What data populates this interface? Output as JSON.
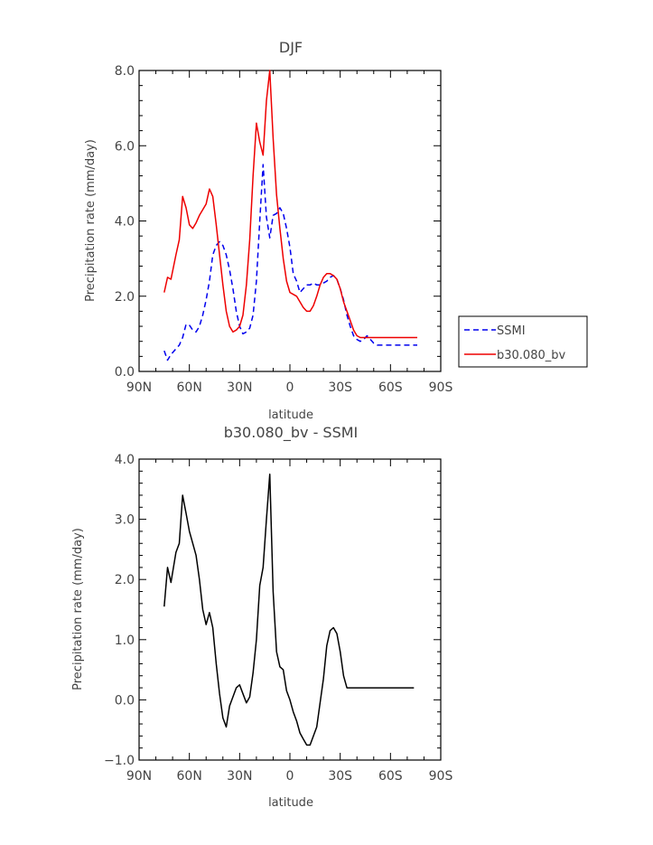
{
  "chart_data": [
    {
      "type": "line",
      "title": "DJF",
      "xlabel": "latitude",
      "ylabel": "Precipitation rate (mm/day)",
      "xlim": [
        -90,
        90
      ],
      "ylim": [
        0,
        8
      ],
      "x_direction": "north-to-south",
      "xticks": [
        {
          "value": -90,
          "label": "90N"
        },
        {
          "value": -60,
          "label": "60N"
        },
        {
          "value": -30,
          "label": "30N"
        },
        {
          "value": 0,
          "label": "0"
        },
        {
          "value": 30,
          "label": "30S"
        },
        {
          "value": 60,
          "label": "60S"
        },
        {
          "value": 90,
          "label": "90S"
        }
      ],
      "yticks": [
        {
          "value": 0,
          "label": "0.0"
        },
        {
          "value": 2,
          "label": "2.0"
        },
        {
          "value": 4,
          "label": "4.0"
        },
        {
          "value": 6,
          "label": "6.0"
        },
        {
          "value": 8,
          "label": "8.0"
        }
      ],
      "grid": false,
      "legend": {
        "placement": "right-outside"
      },
      "series": [
        {
          "name": "SSMI",
          "color": "#0000ee",
          "style": "dashed",
          "x": [
            -75,
            -73,
            -71,
            -68,
            -66,
            -64,
            -62,
            -60,
            -58,
            -56,
            -54,
            -52,
            -50,
            -48,
            -46,
            -44,
            -42,
            -40,
            -38,
            -36,
            -34,
            -32,
            -30,
            -28,
            -26,
            -24,
            -22,
            -20,
            -18,
            -16,
            -14,
            -12,
            -10,
            -8,
            -6,
            -4,
            -2,
            0,
            2,
            4,
            6,
            8,
            10,
            12,
            14,
            16,
            18,
            20,
            22,
            24,
            26,
            28,
            30,
            32,
            34,
            36,
            38,
            40,
            42,
            44,
            46,
            48,
            50,
            52,
            54,
            56,
            58,
            60,
            62,
            64,
            66,
            68,
            70,
            72,
            74,
            76
          ],
          "y": [
            0.55,
            0.3,
            0.45,
            0.6,
            0.7,
            0.9,
            1.25,
            1.23,
            1.1,
            1.05,
            1.2,
            1.5,
            1.9,
            2.4,
            3.1,
            3.35,
            3.45,
            3.35,
            3.1,
            2.7,
            2.2,
            1.6,
            1.2,
            1.0,
            1.05,
            1.15,
            1.5,
            2.4,
            4.0,
            5.5,
            4.1,
            3.55,
            4.15,
            4.2,
            4.35,
            4.2,
            3.8,
            3.3,
            2.6,
            2.4,
            2.1,
            2.2,
            2.3,
            2.3,
            2.35,
            2.3,
            2.3,
            2.35,
            2.4,
            2.5,
            2.55,
            2.45,
            2.2,
            1.9,
            1.5,
            1.2,
            0.95,
            0.85,
            0.8,
            0.85,
            0.95,
            0.85,
            0.75,
            0.7,
            0.7,
            0.7,
            0.7,
            0.7,
            0.7,
            0.7,
            0.7,
            0.7,
            0.7,
            0.7,
            0.7,
            0.7
          ]
        },
        {
          "name": "b30.080_bv",
          "color": "#ee0000",
          "style": "solid",
          "x": [
            -75,
            -73,
            -71,
            -68,
            -66,
            -64,
            -62,
            -60,
            -58,
            -56,
            -54,
            -52,
            -50,
            -48,
            -46,
            -44,
            -42,
            -40,
            -38,
            -36,
            -34,
            -32,
            -30,
            -28,
            -26,
            -24,
            -22,
            -20,
            -18,
            -16,
            -14,
            -12,
            -10,
            -8,
            -6,
            -4,
            -2,
            0,
            2,
            4,
            6,
            8,
            10,
            12,
            14,
            16,
            18,
            20,
            22,
            24,
            26,
            28,
            30,
            32,
            34,
            36,
            38,
            40,
            42,
            44,
            46,
            48,
            50,
            52,
            54,
            56,
            58,
            60,
            62,
            64,
            66,
            68,
            70,
            72,
            74,
            76
          ],
          "y": [
            2.1,
            2.5,
            2.45,
            3.1,
            3.5,
            4.65,
            4.35,
            3.9,
            3.8,
            3.95,
            4.15,
            4.3,
            4.45,
            4.85,
            4.65,
            3.9,
            3.1,
            2.3,
            1.6,
            1.2,
            1.05,
            1.1,
            1.2,
            1.5,
            2.3,
            3.5,
            5.2,
            6.6,
            6.1,
            5.75,
            7.2,
            8.0,
            6.2,
            4.7,
            3.8,
            3.0,
            2.4,
            2.1,
            2.05,
            2.0,
            1.85,
            1.7,
            1.6,
            1.6,
            1.75,
            2.0,
            2.3,
            2.5,
            2.6,
            2.6,
            2.55,
            2.45,
            2.2,
            1.85,
            1.6,
            1.35,
            1.1,
            0.95,
            0.9,
            0.9,
            0.9,
            0.9,
            0.9,
            0.9,
            0.9,
            0.9,
            0.9,
            0.9,
            0.9,
            0.9,
            0.9,
            0.9,
            0.9,
            0.9,
            0.9,
            0.9
          ]
        }
      ]
    },
    {
      "type": "line",
      "title": "b30.080_bv - SSMI",
      "xlabel": "latitude",
      "ylabel": "Precipitation rate (mm/day)",
      "xlim": [
        -90,
        90
      ],
      "ylim": [
        -1,
        4
      ],
      "x_direction": "north-to-south",
      "xticks": [
        {
          "value": -90,
          "label": "90N"
        },
        {
          "value": -60,
          "label": "60N"
        },
        {
          "value": -30,
          "label": "30N"
        },
        {
          "value": 0,
          "label": "0"
        },
        {
          "value": 30,
          "label": "30S"
        },
        {
          "value": 60,
          "label": "60S"
        },
        {
          "value": 90,
          "label": "90S"
        }
      ],
      "yticks": [
        {
          "value": -1,
          "label": "−1.0"
        },
        {
          "value": 0,
          "label": "0.0"
        },
        {
          "value": 1,
          "label": "1.0"
        },
        {
          "value": 2,
          "label": "2.0"
        },
        {
          "value": 3,
          "label": "3.0"
        },
        {
          "value": 4,
          "label": "4.0"
        }
      ],
      "grid": false,
      "series": [
        {
          "color": "#000000",
          "style": "solid",
          "x": [
            -75,
            -73,
            -71,
            -68,
            -66,
            -64,
            -62,
            -60,
            -58,
            -56,
            -54,
            -52,
            -50,
            -48,
            -46,
            -44,
            -42,
            -40,
            -38,
            -36,
            -34,
            -32,
            -30,
            -28,
            -26,
            -24,
            -22,
            -20,
            -18,
            -16,
            -14,
            -12,
            -10,
            -8,
            -6,
            -4,
            -2,
            0,
            2,
            4,
            6,
            8,
            10,
            12,
            14,
            16,
            18,
            20,
            22,
            24,
            26,
            28,
            30,
            32,
            34,
            36,
            38,
            40,
            42,
            44,
            46,
            48,
            50,
            52,
            54,
            56,
            58,
            60,
            62,
            64,
            66,
            68,
            70,
            72,
            74
          ],
          "y": [
            1.55,
            2.2,
            1.95,
            2.45,
            2.6,
            3.4,
            3.1,
            2.8,
            2.6,
            2.4,
            2.0,
            1.5,
            1.25,
            1.45,
            1.2,
            0.6,
            0.1,
            -0.3,
            -0.45,
            -0.1,
            0.05,
            0.2,
            0.25,
            0.1,
            -0.05,
            0.05,
            0.45,
            1.0,
            1.9,
            2.2,
            3.0,
            3.75,
            1.8,
            0.8,
            0.55,
            0.5,
            0.15,
            0.0,
            -0.2,
            -0.35,
            -0.55,
            -0.65,
            -0.75,
            -0.75,
            -0.6,
            -0.45,
            -0.05,
            0.35,
            0.9,
            1.15,
            1.2,
            1.1,
            0.8,
            0.4,
            0.2,
            0.2,
            0.2,
            0.2,
            0.2,
            0.2,
            0.2,
            0.2,
            0.2,
            0.2,
            0.2,
            0.2,
            0.2,
            0.2,
            0.2,
            0.2,
            0.2,
            0.2,
            0.2,
            0.2,
            0.2
          ]
        }
      ]
    }
  ]
}
